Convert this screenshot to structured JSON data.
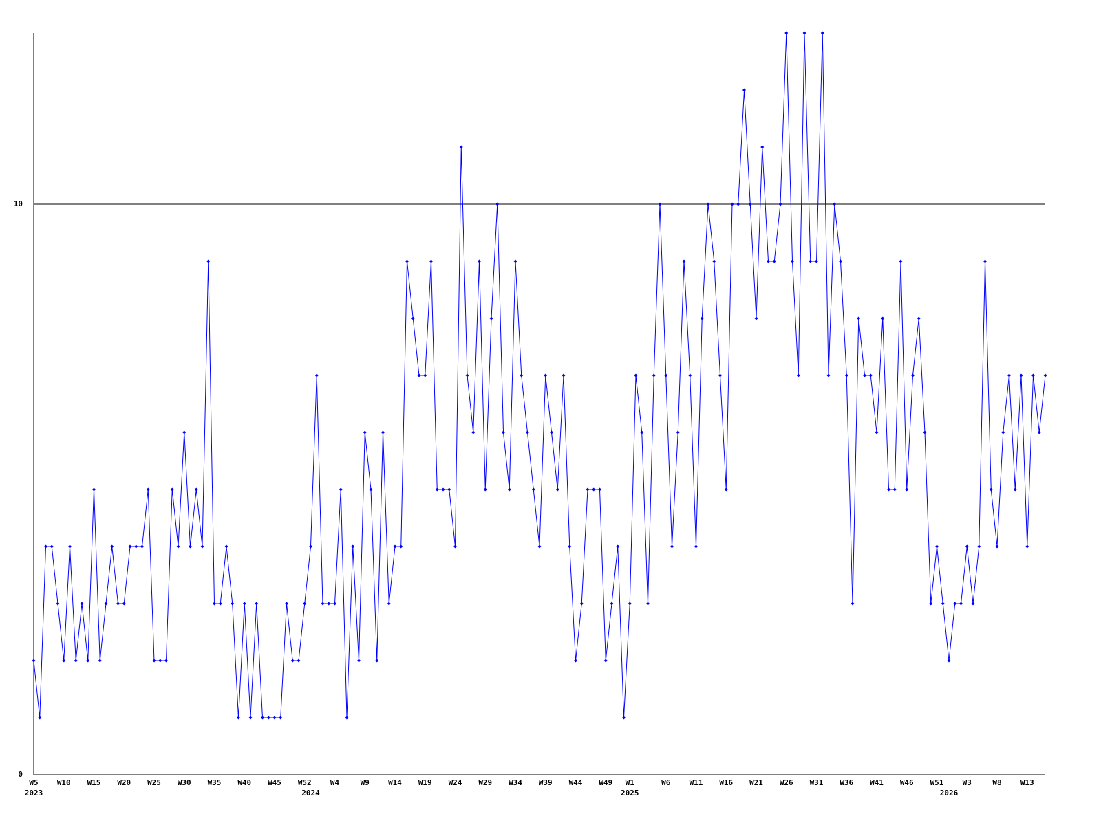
{
  "chart_data": {
    "type": "line",
    "categories": [
      "W5",
      null,
      null,
      null,
      null,
      "W10",
      null,
      null,
      null,
      null,
      "W15",
      null,
      null,
      null,
      null,
      "W20",
      null,
      null,
      null,
      null,
      "W25",
      null,
      null,
      null,
      null,
      "W30",
      null,
      null,
      null,
      null,
      "W35",
      null,
      null,
      null,
      null,
      "W40",
      null,
      null,
      null,
      null,
      "W45",
      null,
      null,
      null,
      null,
      "W52",
      null,
      null,
      null,
      null,
      "W4",
      null,
      null,
      null,
      null,
      "W9",
      null,
      null,
      null,
      null,
      "W14",
      null,
      null,
      null,
      null,
      "W19",
      null,
      null,
      null,
      null,
      "W24",
      null,
      null,
      null,
      null,
      "W29",
      null,
      null,
      null,
      null,
      "W34",
      null,
      null,
      null,
      null,
      "W39",
      null,
      null,
      null,
      null,
      "W44",
      null,
      null,
      null,
      null,
      "W49",
      null,
      null,
      null,
      "W1",
      null,
      null,
      null,
      null,
      null,
      "W6",
      null,
      null,
      null,
      null,
      "W11",
      null,
      null,
      null,
      null,
      "W16",
      null,
      null,
      null,
      null,
      "W21",
      null,
      null,
      null,
      null,
      "W26",
      null,
      null,
      null,
      null,
      "W31",
      null,
      null,
      null,
      null,
      "W36",
      null,
      null,
      null,
      null,
      "W41",
      null,
      null,
      null,
      null,
      "W46",
      null,
      null,
      null,
      null,
      "W51",
      null,
      null,
      null,
      null,
      "W3",
      null,
      null,
      null,
      null,
      "W8",
      null,
      null,
      null,
      null,
      "W13",
      null,
      null,
      null
    ],
    "years": [
      "2023",
      null,
      null,
      null,
      null,
      null,
      null,
      null,
      null,
      null,
      null,
      null,
      null,
      null,
      null,
      null,
      null,
      null,
      null,
      null,
      null,
      null,
      null,
      null,
      null,
      null,
      null,
      null,
      null,
      null,
      null,
      null,
      null,
      null,
      null,
      null,
      null,
      null,
      null,
      null,
      null,
      null,
      null,
      null,
      null,
      null,
      "2024",
      null,
      null,
      null,
      null,
      null,
      null,
      null,
      null,
      null,
      null,
      null,
      null,
      null,
      null,
      null,
      null,
      null,
      null,
      null,
      null,
      null,
      null,
      null,
      null,
      null,
      null,
      null,
      null,
      null,
      null,
      null,
      null,
      null,
      null,
      null,
      null,
      null,
      null,
      null,
      null,
      null,
      null,
      null,
      null,
      null,
      null,
      null,
      null,
      null,
      null,
      null,
      null,
      "2025",
      null,
      null,
      null,
      null,
      null,
      null,
      null,
      null,
      null,
      null,
      null,
      null,
      null,
      null,
      null,
      null,
      null,
      null,
      null,
      null,
      null,
      null,
      null,
      null,
      null,
      null,
      null,
      null,
      null,
      null,
      null,
      null,
      null,
      null,
      null,
      null,
      null,
      null,
      null,
      null,
      null,
      null,
      null,
      null,
      null,
      null,
      null,
      null,
      null,
      null,
      null,
      null,
      "2026",
      null,
      null,
      null,
      null,
      null,
      null,
      null,
      null,
      null,
      null,
      null,
      null,
      null,
      null,
      null,
      null
    ],
    "values": [
      2,
      1,
      4,
      4,
      3,
      2,
      4,
      2,
      3,
      2,
      5,
      2,
      3,
      4,
      3,
      3,
      4,
      4,
      4,
      5,
      2,
      2,
      2,
      5,
      4,
      6,
      4,
      5,
      4,
      9,
      3,
      3,
      4,
      3,
      1,
      3,
      1,
      3,
      1,
      1,
      1,
      1,
      3,
      2,
      2,
      3,
      4,
      7,
      3,
      3,
      3,
      5,
      1,
      4,
      2,
      6,
      5,
      2,
      6,
      3,
      4,
      4,
      9,
      8,
      7,
      7,
      9,
      5,
      5,
      5,
      4,
      11,
      7,
      6,
      9,
      5,
      8,
      10,
      6,
      5,
      9,
      7,
      6,
      5,
      4,
      7,
      6,
      5,
      7,
      4,
      2,
      3,
      5,
      5,
      5,
      2,
      3,
      4,
      1,
      3,
      7,
      6,
      3,
      7,
      10,
      7,
      4,
      6,
      9,
      7,
      4,
      8,
      10,
      9,
      7,
      5,
      10,
      10,
      12,
      10,
      8,
      11,
      9,
      9,
      10,
      13,
      9,
      7,
      13,
      9,
      9,
      13,
      7,
      10,
      9,
      7,
      3,
      8,
      7,
      7,
      6,
      8,
      5,
      5,
      9,
      5,
      7,
      8,
      6,
      3,
      4,
      3,
      2,
      3,
      3,
      4,
      3,
      4,
      9,
      5,
      4,
      6,
      7,
      5,
      7,
      4,
      7,
      6,
      7
    ],
    "color": "#0000ff",
    "ylim": [
      0,
      13
    ],
    "yticks": [
      0,
      10
    ],
    "grid": true
  }
}
